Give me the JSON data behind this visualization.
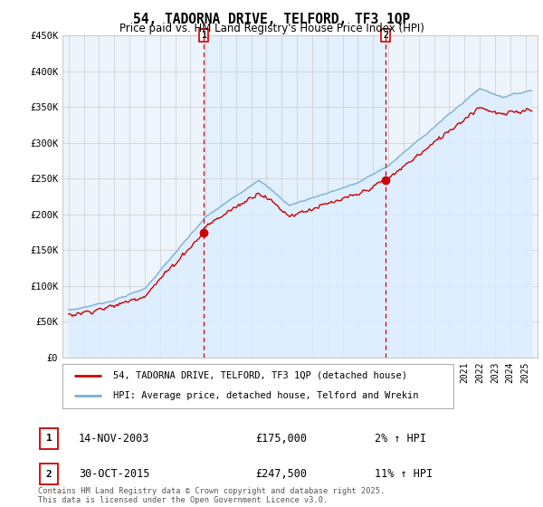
{
  "title": "54, TADORNA DRIVE, TELFORD, TF3 1QP",
  "subtitle": "Price paid vs. HM Land Registry's House Price Index (HPI)",
  "legend_line1": "54, TADORNA DRIVE, TELFORD, TF3 1QP (detached house)",
  "legend_line2": "HPI: Average price, detached house, Telford and Wrekin",
  "annotation1_label": "1",
  "annotation1_date": "14-NOV-2003",
  "annotation1_price": "£175,000",
  "annotation1_hpi": "2% ↑ HPI",
  "annotation2_label": "2",
  "annotation2_date": "30-OCT-2015",
  "annotation2_price": "£247,500",
  "annotation2_hpi": "11% ↑ HPI",
  "footer": "Contains HM Land Registry data © Crown copyright and database right 2025.\nThis data is licensed under the Open Government Licence v3.0.",
  "ylim": [
    0,
    450000
  ],
  "yticks": [
    0,
    50000,
    100000,
    150000,
    200000,
    250000,
    300000,
    350000,
    400000,
    450000
  ],
  "ytick_labels": [
    "£0",
    "£50K",
    "£100K",
    "£150K",
    "£200K",
    "£250K",
    "£300K",
    "£350K",
    "£400K",
    "£450K"
  ],
  "vline1_year": 2003.87,
  "vline2_year": 2015.83,
  "marker1_year": 2003.87,
  "marker1_price": 175000,
  "marker2_year": 2015.83,
  "marker2_price": 247500,
  "red_color": "#cc0000",
  "blue_color": "#7aafd4",
  "blue_fill_color": "#ddeeff",
  "background_color": "#ddeeff",
  "plot_bg_color": "#eef4fb",
  "grid_color": "#cccccc",
  "xmin": 1995,
  "xmax": 2025
}
